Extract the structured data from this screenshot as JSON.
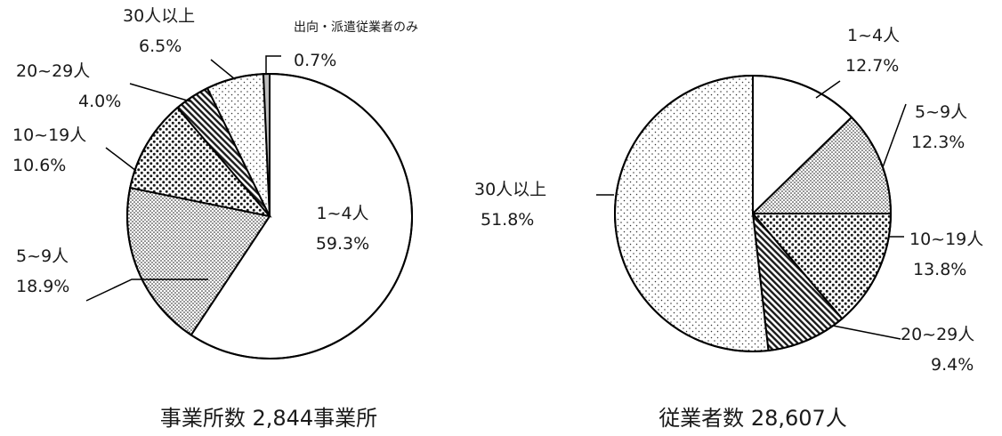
{
  "colors": {
    "stroke": "#000000",
    "background": "#ffffff",
    "pattern_ink": "#1a1a1a",
    "minor_slice_fill": "#bdbdbd"
  },
  "chart_data": [
    {
      "type": "pie",
      "title": "事業所数 2,844事業所",
      "slices": [
        {
          "label": "1~4人",
          "value": 59.3,
          "value_text": "59.3%",
          "fill": "white"
        },
        {
          "label": "5~9人",
          "value": 18.9,
          "value_text": "18.9%",
          "fill": "fine-dots"
        },
        {
          "label": "10~19人",
          "value": 10.6,
          "value_text": "10.6%",
          "fill": "coarse-dots"
        },
        {
          "label": "20~29人",
          "value": 4.0,
          "value_text": "4.0%",
          "fill": "diagonal-stripes"
        },
        {
          "label": "30人以上",
          "value": 6.5,
          "value_text": "6.5%",
          "fill": "sparse-dots"
        },
        {
          "label": "出向・派遣従業者のみ",
          "value": 0.7,
          "value_text": "0.7%",
          "fill": "gray"
        }
      ]
    },
    {
      "type": "pie",
      "title": "従業者数 28,607人",
      "slices": [
        {
          "label": "1~4人",
          "value": 12.7,
          "value_text": "12.7%",
          "fill": "white"
        },
        {
          "label": "5~9人",
          "value": 12.3,
          "value_text": "12.3%",
          "fill": "fine-dots"
        },
        {
          "label": "10~19人",
          "value": 13.8,
          "value_text": "13.8%",
          "fill": "coarse-dots"
        },
        {
          "label": "20~29人",
          "value": 9.4,
          "value_text": "9.4%",
          "fill": "diagonal-stripes"
        },
        {
          "label": "30人以上",
          "value": 51.8,
          "value_text": "51.8%",
          "fill": "sparse-dots"
        }
      ]
    }
  ]
}
